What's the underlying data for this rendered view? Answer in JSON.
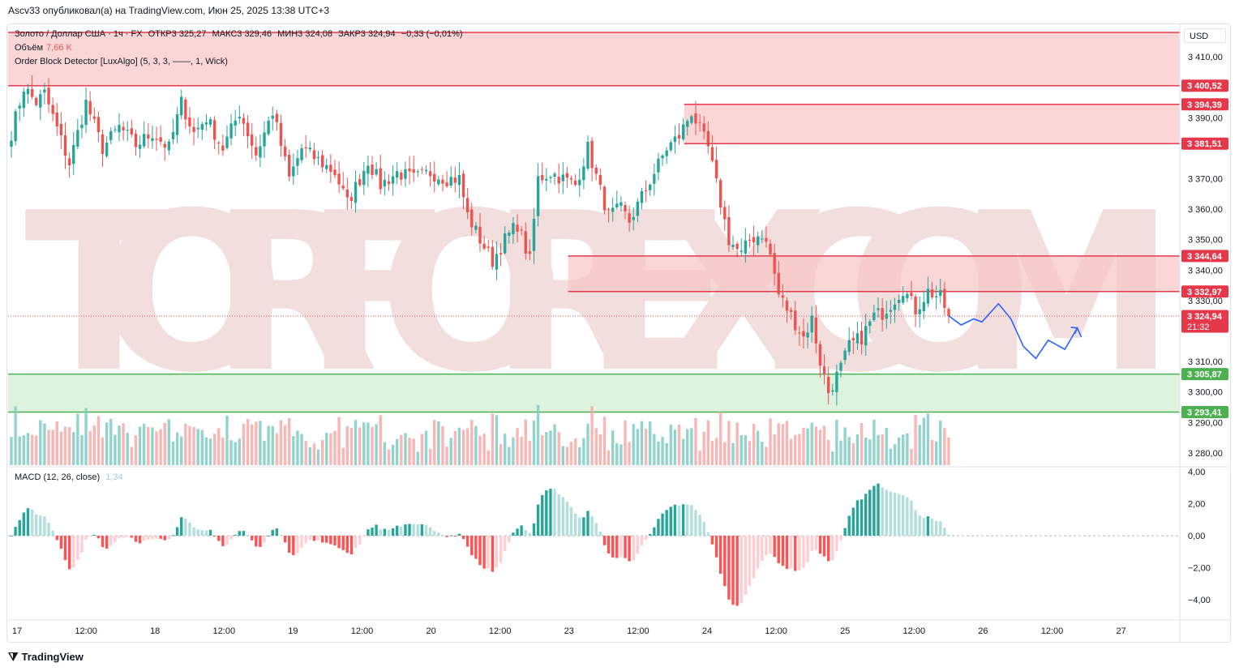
{
  "header": {
    "credit": "Ascv33 опубликовал(а) на TradingView.com, Июн 25, 2025 13:38 UTC+3"
  },
  "legend": {
    "symbol": "Золото / Доллар США · 1ч · FX",
    "open_label": "ОТКР",
    "open": "3 325,27",
    "high_label": "МАКС",
    "high": "3 329,46",
    "low_label": "МИН",
    "low": "3 324,08",
    "close_label": "ЗАКР",
    "close": "3 324,94",
    "change": "−0,33 (−0,01%)",
    "volume_label": "Объём",
    "volume": "7,66 K",
    "indicator": "Order Block Detector [LuxAlgo] (5, 3, 3, ——, 1, Wick)"
  },
  "macd_legend": {
    "label": "MACD (12, 26, close)",
    "value": "1,34"
  },
  "currency": "USD",
  "watermark": "TORFOREX.COM",
  "footer": {
    "brand": "TradingView"
  },
  "colors": {
    "up": "#26a69a",
    "down": "#ef5350",
    "bear_zone": "#f8c5c5",
    "bull_zone": "#d6f0d6",
    "zone_line_red": "#e5394b",
    "zone_line_green": "#4caf50",
    "forecast": "#2962ff"
  },
  "chart_data": {
    "type": "candlestick",
    "title": "Золото / Доллар США · 1ч · FX",
    "price_axis": {
      "ylim": [
        3276,
        3418
      ],
      "ticks": [
        "3 410,00",
        "3 390,00",
        "3 370,00",
        "3 360,00",
        "3 350,00",
        "3 340,00",
        "3 330,00",
        "3 310,00",
        "3 300,00",
        "3 290,00",
        "3 280,00"
      ],
      "tick_values": [
        3410,
        3390,
        3370,
        3360,
        3350,
        3340,
        3330,
        3310,
        3300,
        3290,
        3280
      ],
      "badges": [
        {
          "label": "3 400,52",
          "value": 3400.52,
          "kind": "red"
        },
        {
          "label": "3 394,39",
          "value": 3394.39,
          "kind": "red"
        },
        {
          "label": "3 381,51",
          "value": 3381.51,
          "kind": "red"
        },
        {
          "label": "3 344,64",
          "value": 3344.64,
          "kind": "red"
        },
        {
          "label": "3 332,97",
          "value": 3332.97,
          "kind": "red"
        },
        {
          "label": "3 324,94",
          "value": 3324.94,
          "kind": "price",
          "sub": "21:32"
        },
        {
          "label": "3 305,87",
          "value": 3305.87,
          "kind": "green"
        },
        {
          "label": "3 293,41",
          "value": 3293.41,
          "kind": "green"
        }
      ]
    },
    "time_axis": [
      "17",
      "12:00",
      "18",
      "12:00",
      "19",
      "12:00",
      "20",
      "12:00",
      "23",
      "12:00",
      "24",
      "12:00",
      "25",
      "12:00",
      "26",
      "12:00",
      "27"
    ],
    "order_blocks": [
      {
        "type": "bearish",
        "top": 3418,
        "bottom": 3400.52,
        "start_bar": 0
      },
      {
        "type": "bearish",
        "top": 3394.39,
        "bottom": 3381.51,
        "start_bar": 163
      },
      {
        "type": "bearish",
        "top": 3344.64,
        "bottom": 3332.97,
        "start_bar": 135
      },
      {
        "type": "bullish",
        "top": 3305.87,
        "bottom": 3293.41,
        "start_bar": 0
      }
    ],
    "anchors": [
      [
        0,
        3385
      ],
      [
        3,
        3400
      ],
      [
        6,
        3395
      ],
      [
        8,
        3398
      ],
      [
        14,
        3375
      ],
      [
        18,
        3395
      ],
      [
        22,
        3380
      ],
      [
        26,
        3387
      ],
      [
        30,
        3381
      ],
      [
        34,
        3385
      ],
      [
        38,
        3380
      ],
      [
        41,
        3395
      ],
      [
        44,
        3385
      ],
      [
        47,
        3390
      ],
      [
        51,
        3380
      ],
      [
        55,
        3392
      ],
      [
        59,
        3378
      ],
      [
        63,
        3392
      ],
      [
        67,
        3370
      ],
      [
        70,
        3380
      ],
      [
        74,
        3376
      ],
      [
        78,
        3372
      ],
      [
        81,
        3362
      ],
      [
        84,
        3370
      ],
      [
        86,
        3376
      ],
      [
        89,
        3368
      ],
      [
        93,
        3372
      ],
      [
        97,
        3370
      ],
      [
        101,
        3372
      ],
      [
        105,
        3370
      ],
      [
        108,
        3370
      ],
      [
        110,
        3358
      ],
      [
        113,
        3350
      ],
      [
        116,
        3343
      ],
      [
        119,
        3350
      ],
      [
        122,
        3355
      ],
      [
        125,
        3343
      ],
      [
        127,
        3370
      ],
      [
        130,
        3372
      ],
      [
        133,
        3370
      ],
      [
        136,
        3368
      ],
      [
        139,
        3380
      ],
      [
        142,
        3366
      ],
      [
        144,
        3358
      ],
      [
        147,
        3360
      ],
      [
        149,
        3356
      ],
      [
        152,
        3364
      ],
      [
        155,
        3372
      ],
      [
        158,
        3380
      ],
      [
        161,
        3384
      ],
      [
        164,
        3392
      ],
      [
        166,
        3386
      ],
      [
        168,
        3380
      ],
      [
        170,
        3368
      ],
      [
        173,
        3350
      ],
      [
        176,
        3345
      ],
      [
        178,
        3350
      ],
      [
        181,
        3352
      ],
      [
        183,
        3345
      ],
      [
        185,
        3332
      ],
      [
        188,
        3325
      ],
      [
        191,
        3318
      ],
      [
        193,
        3324
      ],
      [
        195,
        3310
      ],
      [
        197,
        3300
      ],
      [
        200,
        3308
      ],
      [
        202,
        3315
      ],
      [
        205,
        3318
      ],
      [
        208,
        3325
      ],
      [
        210,
        3326
      ],
      [
        212,
        3329
      ],
      [
        215,
        3334
      ],
      [
        218,
        3327
      ],
      [
        221,
        3333
      ],
      [
        224,
        3331
      ],
      [
        226,
        3325
      ]
    ],
    "forecast": [
      [
        226,
        3325
      ],
      [
        229,
        3322
      ],
      [
        232,
        3324
      ],
      [
        234,
        3323
      ],
      [
        238,
        3329
      ],
      [
        241,
        3324
      ],
      [
        244,
        3315
      ],
      [
        247,
        3311
      ],
      [
        250,
        3317
      ],
      [
        254,
        3314
      ],
      [
        257,
        3321
      ],
      [
        258,
        3318
      ]
    ],
    "macd": {
      "ylim": [
        -4.8,
        4.2
      ],
      "ticks": [
        "4,00",
        "2,00",
        "0,00",
        "−2,00",
        "−4,00"
      ],
      "tick_values": [
        4,
        2,
        0,
        -2,
        -4
      ]
    },
    "volume": {
      "last": "7,66 K"
    }
  }
}
